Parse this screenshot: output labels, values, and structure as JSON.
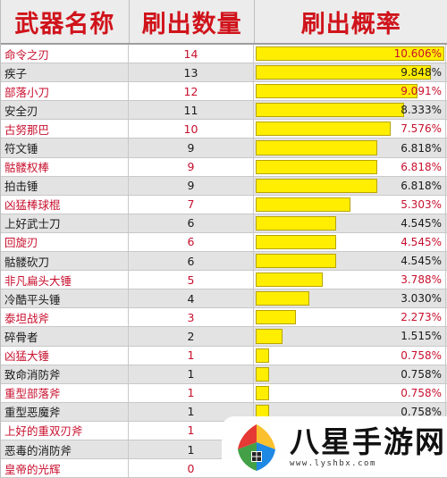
{
  "header": {
    "col_name": "武器名称",
    "col_count": "刷出数量",
    "col_rate": "刷出概率"
  },
  "chart_data": {
    "type": "bar",
    "orientation": "horizontal",
    "columns": [
      "武器名称",
      "刷出数量",
      "刷出概率"
    ],
    "xlim": [
      0,
      10.606
    ],
    "rows": [
      {
        "name": "命令之刃",
        "count": "14",
        "percent_label": "10.606%",
        "percent": 10.606,
        "color": "red"
      },
      {
        "name": "疾子",
        "count": "13",
        "percent_label": "9.848%",
        "percent": 9.848,
        "color": "black"
      },
      {
        "name": "部落小刀",
        "count": "12",
        "percent_label": "9.091%",
        "percent": 9.091,
        "color": "red"
      },
      {
        "name": "安全刃",
        "count": "11",
        "percent_label": "8.333%",
        "percent": 8.333,
        "color": "black"
      },
      {
        "name": "古努那巴",
        "count": "10",
        "percent_label": "7.576%",
        "percent": 7.576,
        "color": "red"
      },
      {
        "name": "符文锤",
        "count": "9",
        "percent_label": "6.818%",
        "percent": 6.818,
        "color": "black"
      },
      {
        "name": "骷髅权棒",
        "count": "9",
        "percent_label": "6.818%",
        "percent": 6.818,
        "color": "red"
      },
      {
        "name": "拍击锤",
        "count": "9",
        "percent_label": "6.818%",
        "percent": 6.818,
        "color": "black"
      },
      {
        "name": "凶猛棒球棍",
        "count": "7",
        "percent_label": "5.303%",
        "percent": 5.303,
        "color": "red"
      },
      {
        "name": "上好武士刀",
        "count": "6",
        "percent_label": "4.545%",
        "percent": 4.545,
        "color": "black"
      },
      {
        "name": "回旋刃",
        "count": "6",
        "percent_label": "4.545%",
        "percent": 4.545,
        "color": "red"
      },
      {
        "name": "骷髅砍刀",
        "count": "6",
        "percent_label": "4.545%",
        "percent": 4.545,
        "color": "black"
      },
      {
        "name": "非凡扁头大锤",
        "count": "5",
        "percent_label": "3.788%",
        "percent": 3.788,
        "color": "red"
      },
      {
        "name": "冷酷平头锤",
        "count": "4",
        "percent_label": "3.030%",
        "percent": 3.03,
        "color": "black"
      },
      {
        "name": "泰坦战斧",
        "count": "3",
        "percent_label": "2.273%",
        "percent": 2.273,
        "color": "red"
      },
      {
        "name": "碎骨者",
        "count": "2",
        "percent_label": "1.515%",
        "percent": 1.515,
        "color": "black"
      },
      {
        "name": "凶猛大锤",
        "count": "1",
        "percent_label": "0.758%",
        "percent": 0.758,
        "color": "red"
      },
      {
        "name": "致命消防斧",
        "count": "1",
        "percent_label": "0.758%",
        "percent": 0.758,
        "color": "black"
      },
      {
        "name": "重型部落斧",
        "count": "1",
        "percent_label": "0.758%",
        "percent": 0.758,
        "color": "red"
      },
      {
        "name": "重型恶魔斧",
        "count": "1",
        "percent_label": "0.758%",
        "percent": 0.758,
        "color": "black"
      },
      {
        "name": "上好的重双刃斧",
        "count": "1",
        "percent_label": "",
        "percent": 0.758,
        "color": "red"
      },
      {
        "name": "恶毒的消防斧",
        "count": "1",
        "percent_label": "",
        "percent": 0.758,
        "color": "black"
      },
      {
        "name": "皇帝的光辉",
        "count": "0",
        "percent_label": "",
        "percent": 0,
        "color": "red"
      }
    ]
  },
  "colors": {
    "header_text": "#d0131b",
    "red_text": "#c8102e",
    "bar_fill": "#ffee00",
    "row_alt": "#e3e3e3"
  },
  "watermark": {
    "title": "八星手游网",
    "url": "www.lyshbx.com"
  }
}
